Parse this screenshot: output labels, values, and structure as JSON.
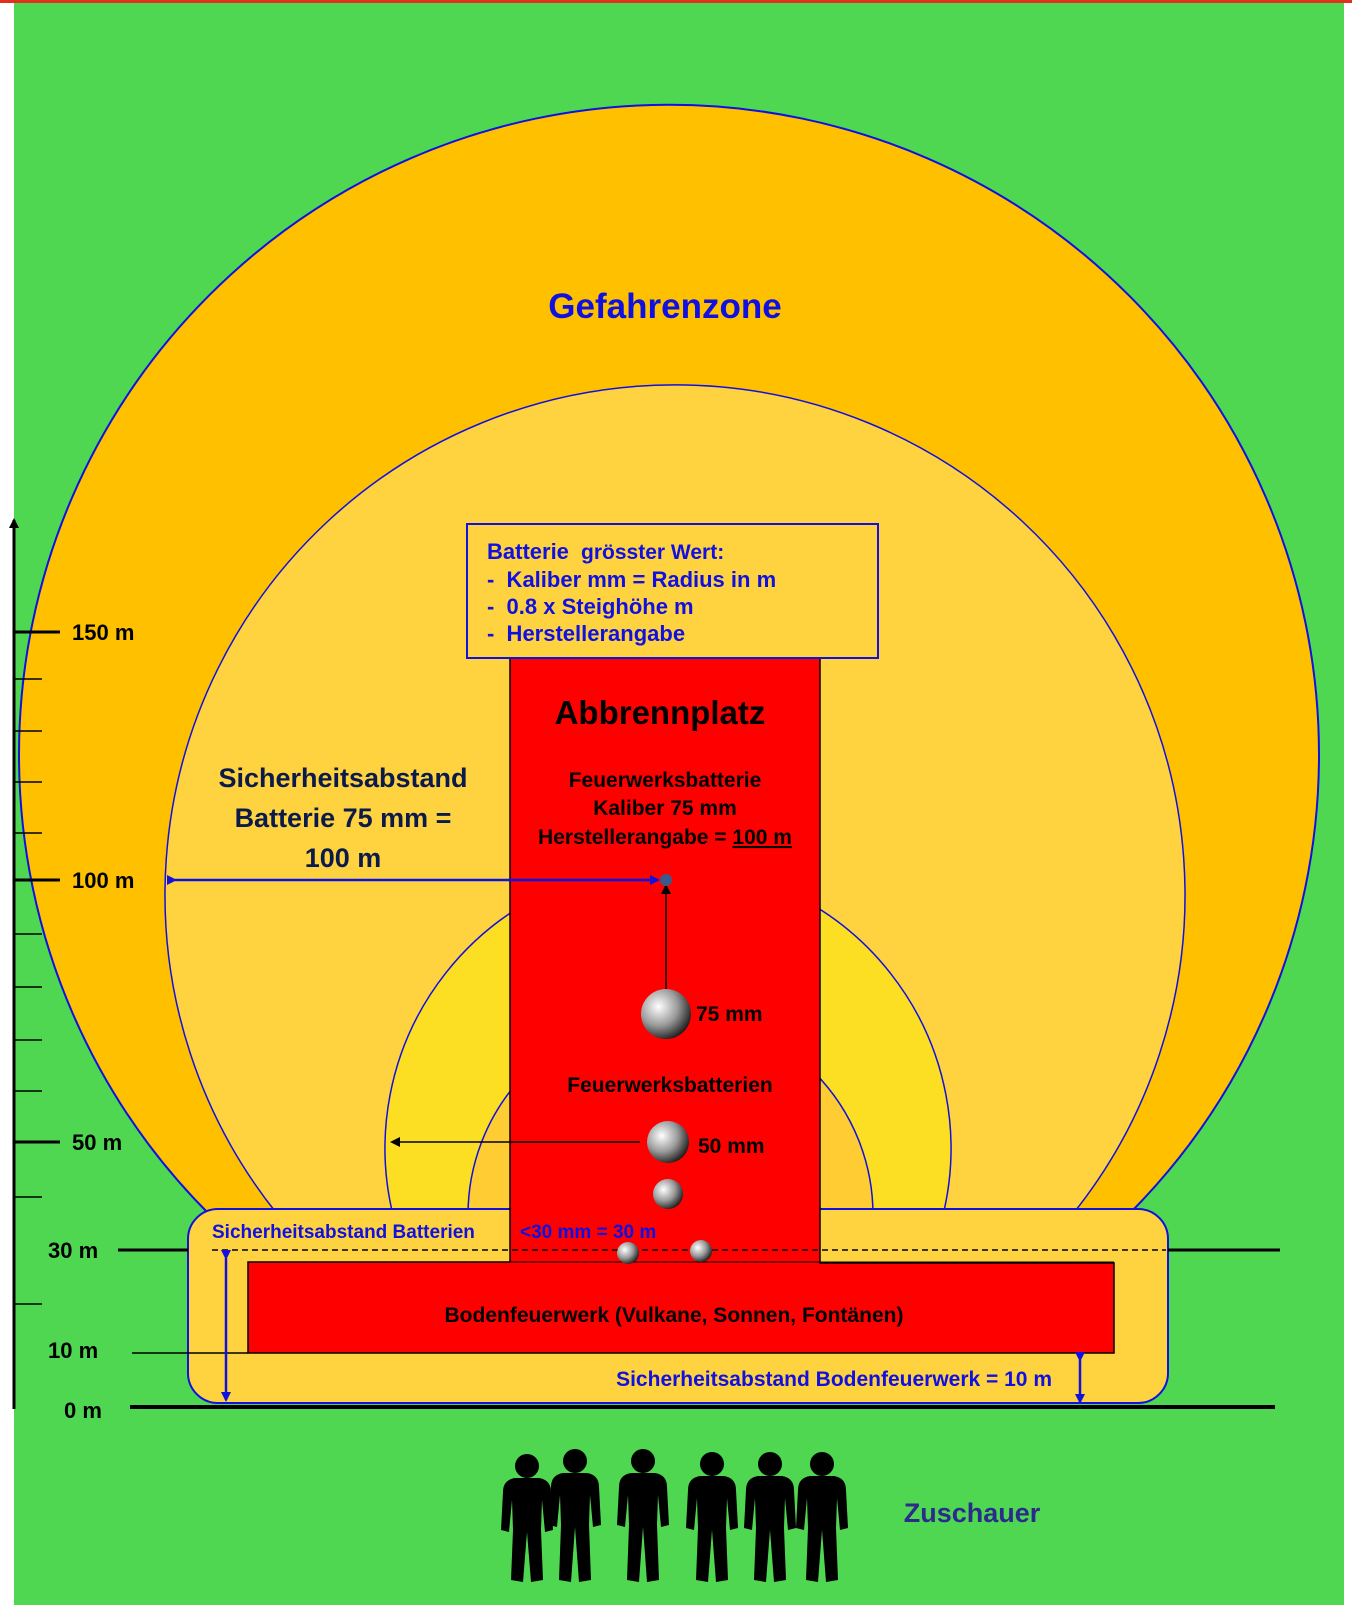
{
  "colors": {
    "background": "#4fd752",
    "outer_zone": "#ffc000",
    "middle_zone": "#ffd23f",
    "inner_zone": "#fcde22",
    "inner_core": "#ffcc33",
    "red_area": "#ff0000",
    "blue_text": "#1010e0",
    "dark_blue_text": "#0a1a4a",
    "audience_text": "#2b2b8c",
    "border_top": "#e03020"
  },
  "labels": {
    "danger_zone": "Gefahrenzone",
    "info_box_title_bold": "Batterie",
    "info_box_title_rest": "grösster Wert:",
    "info_box_lines": [
      "-  Kaliber mm = Radius in m",
      "-  0.8 x Steighöhe m",
      "-  Herstellerangabe"
    ],
    "burn_site": "Abbrennplatz",
    "battery_title": "Feuerwerksbatterie",
    "battery_caliber": "Kaliber 75 mm",
    "battery_spec_prefix": "Herstellerangabe = ",
    "battery_spec_value": "100 m",
    "safety_distance_lines": [
      "Sicherheitsabstand",
      "Batterie 75 mm =",
      "100 m"
    ],
    "shell_75": "75 mm",
    "batteries_plural": "Feuerwerksbatterien",
    "shell_50": "50 mm",
    "safety_batteries": "Sicherheitsabstand Batterien",
    "safety_batteries_small": "<30 mm = 30 m",
    "ground_fireworks": "Bodenfeuerwerk (Vulkane, Sonnen, Fontänen)",
    "safety_ground": "Sicherheitsabstand Bodenfeuerwerk = 10 m",
    "audience": "Zuschauer"
  },
  "scale": {
    "ticks": [
      "150 m",
      "100 m",
      "50 m",
      "30 m",
      "10 m",
      "0 m"
    ]
  }
}
